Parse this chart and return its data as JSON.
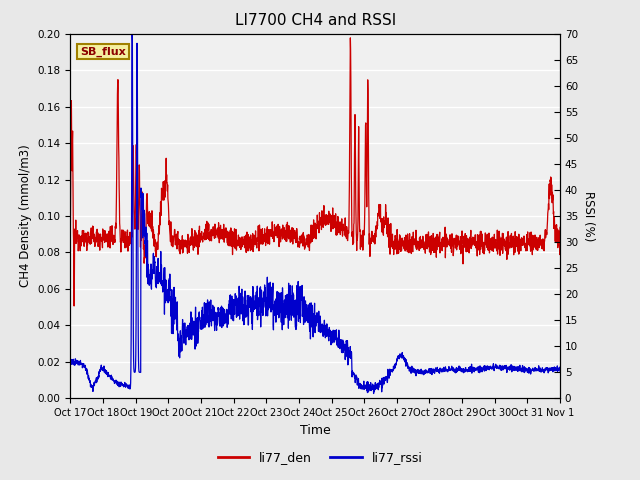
{
  "title": "LI7700 CH4 and RSSI",
  "xlabel": "Time",
  "ylabel_left": "CH4 Density (mmol/m3)",
  "ylabel_right": "RSSI (%)",
  "xlim": [
    0,
    16
  ],
  "ylim_left": [
    0.0,
    0.2
  ],
  "ylim_right": [
    0,
    70
  ],
  "yticks_left": [
    0.0,
    0.02,
    0.04,
    0.06,
    0.08,
    0.1,
    0.12,
    0.14,
    0.16,
    0.18,
    0.2
  ],
  "yticks_right": [
    0,
    5,
    10,
    15,
    20,
    25,
    30,
    35,
    40,
    45,
    50,
    55,
    60,
    65,
    70
  ],
  "xtick_labels": [
    "Oct 17",
    "Oct 18",
    "Oct 19",
    "Oct 20",
    "Oct 21",
    "Oct 22",
    "Oct 23",
    "Oct 24",
    "Oct 25",
    "Oct 26",
    "Oct 27",
    "Oct 28",
    "Oct 29",
    "Oct 30",
    "Oct 31",
    "Nov 1"
  ],
  "color_den": "#cc0000",
  "color_rssi": "#0000cc",
  "legend_label_den": "li77_den",
  "legend_label_rssi": "li77_rssi",
  "annotation_text": "SB_flux",
  "bg_color": "#e8e8e8",
  "plot_bg_color": "#f0f0f0",
  "grid_color": "#ffffff",
  "linewidth": 0.9
}
